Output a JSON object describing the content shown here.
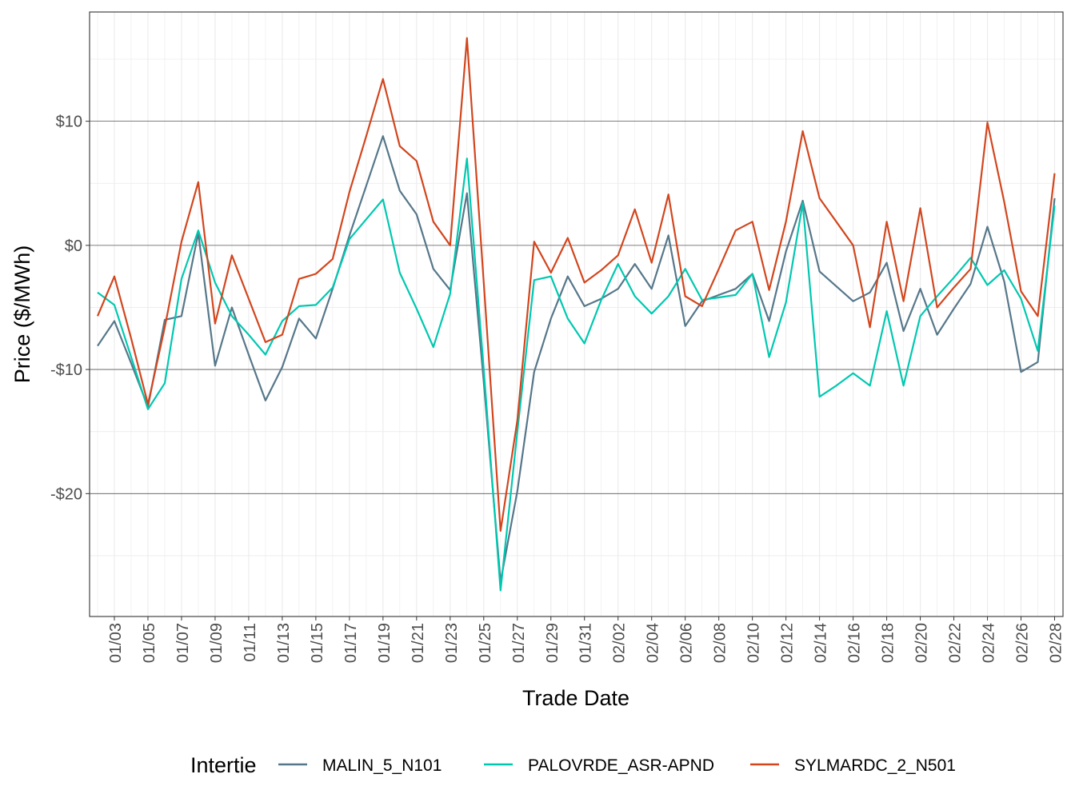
{
  "chart_data": {
    "type": "line",
    "title": "",
    "xlabel": "Trade Date",
    "ylabel": "Price ($/MWh)",
    "ylim": [
      -29.9,
      18.8
    ],
    "y_ticks": [
      10,
      0,
      -10,
      -20
    ],
    "y_tick_labels": [
      "$10",
      "$0",
      "-$10",
      "-$20"
    ],
    "grid": true,
    "legend": {
      "title": "Intertie",
      "placement": "bottom"
    },
    "x": [
      "01/02",
      "01/03",
      "01/04",
      "01/05",
      "01/06",
      "01/07",
      "01/08",
      "01/09",
      "01/10",
      "01/11",
      "01/12",
      "01/13",
      "01/14",
      "01/15",
      "01/16",
      "01/17",
      "01/18",
      "01/19",
      "01/20",
      "01/21",
      "01/22",
      "01/23",
      "01/24",
      "01/25",
      "01/26",
      "01/27",
      "01/28",
      "01/29",
      "01/30",
      "01/31",
      "02/01",
      "02/02",
      "02/03",
      "02/04",
      "02/05",
      "02/06",
      "02/07",
      "02/08",
      "02/09",
      "02/10",
      "02/11",
      "02/12",
      "02/13",
      "02/14",
      "02/15",
      "02/16",
      "02/17",
      "02/18",
      "02/19",
      "02/20",
      "02/21",
      "02/22",
      "02/23",
      "02/24",
      "02/25",
      "02/26",
      "02/27",
      "02/28"
    ],
    "x_tick_labels": [
      "01/03",
      "01/05",
      "01/07",
      "01/09",
      "01/11",
      "01/13",
      "01/15",
      "01/17",
      "01/19",
      "01/21",
      "01/23",
      "01/25",
      "01/27",
      "01/29",
      "01/31",
      "02/02",
      "02/04",
      "02/06",
      "02/08",
      "02/10",
      "02/12",
      "02/14",
      "02/16",
      "02/18",
      "02/20",
      "02/22",
      "02/24",
      "02/26",
      "02/28"
    ],
    "series": [
      {
        "name": "MALIN_5_N101",
        "color": "#56778a",
        "values": [
          -8.1,
          -6.1,
          -9.5,
          -13.0,
          -6.0,
          -5.7,
          1.0,
          -9.7,
          -5.0,
          -8.8,
          -12.5,
          -9.8,
          -5.9,
          -7.5,
          -3.5,
          0.8,
          4.8,
          8.8,
          4.4,
          2.5,
          -1.9,
          -3.6,
          4.2,
          -11.0,
          -27.1,
          -19.8,
          -10.2,
          -5.9,
          -2.5,
          -4.9,
          -4.3,
          -3.5,
          -1.5,
          -3.5,
          0.8,
          -6.5,
          -4.5,
          -4.0,
          -3.5,
          -2.3,
          -6.1,
          -0.5,
          3.6,
          -2.1,
          -3.3,
          -4.5,
          -3.8,
          -1.4,
          -6.9,
          -3.5,
          -7.2,
          -5.1,
          -3.1,
          1.5,
          -2.9,
          -10.2,
          -9.4,
          3.8
        ]
      },
      {
        "name": "PALOVRDE_ASR-APND",
        "color": "#00c8b0",
        "values": [
          -3.8,
          -4.8,
          -9.0,
          -13.2,
          -11.1,
          -2.7,
          1.2,
          -3.0,
          -5.7,
          -7.2,
          -8.8,
          -6.1,
          -4.9,
          -4.8,
          -3.4,
          0.5,
          2.1,
          3.7,
          -2.2,
          -5.1,
          -8.2,
          -3.9,
          7.0,
          -10.0,
          -27.8,
          -15.0,
          -2.8,
          -2.5,
          -5.9,
          -7.9,
          -4.4,
          -1.5,
          -4.1,
          -5.5,
          -4.1,
          -1.9,
          -4.4,
          -4.2,
          -4.0,
          -2.3,
          -9.0,
          -4.6,
          3.4,
          -12.2,
          -11.3,
          -10.3,
          -11.3,
          -5.3,
          -11.3,
          -5.7,
          -4.1,
          -2.6,
          -1.0,
          -3.2,
          -2.0,
          -4.3,
          -8.5,
          3.2
        ]
      },
      {
        "name": "SYLMARDC_2_N501",
        "color": "#d2461e",
        "values": [
          -5.7,
          -2.5,
          -7.5,
          -12.8,
          -6.6,
          0.3,
          5.1,
          -6.3,
          -0.8,
          -4.3,
          -7.8,
          -7.2,
          -2.7,
          -2.3,
          -1.1,
          4.3,
          8.8,
          13.4,
          8.0,
          6.8,
          1.9,
          0.0,
          16.7,
          -3.0,
          -23.0,
          -14.1,
          0.3,
          -2.2,
          0.6,
          -3.0,
          -2.0,
          -0.8,
          2.9,
          -1.4,
          4.1,
          -4.1,
          -4.9,
          -1.9,
          1.2,
          1.9,
          -3.6,
          1.9,
          9.2,
          3.8,
          1.9,
          0.0,
          -6.6,
          1.9,
          -4.5,
          3.0,
          -5.0,
          -3.4,
          -1.9,
          9.9,
          3.5,
          -3.7,
          -5.7,
          5.8
        ]
      }
    ]
  }
}
